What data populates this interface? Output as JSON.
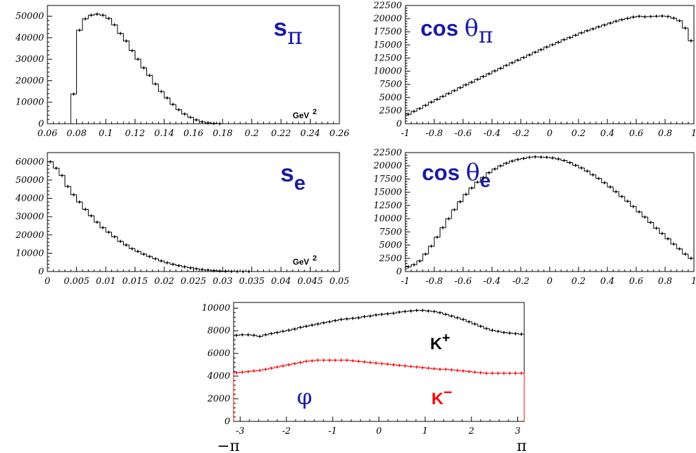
{
  "chart_data": [
    {
      "id": "s_pi",
      "type": "histogram",
      "title": "s_π",
      "title_main": "s",
      "title_sub": "π",
      "unit": "GeV",
      "unit_sup": "2",
      "xlim": [
        0.06,
        0.26
      ],
      "ylim": [
        0,
        55000
      ],
      "xticks": [
        "0.06",
        "0.08",
        "0.1",
        "0.12",
        "0.14",
        "0.16",
        "0.18",
        "0.2",
        "0.22",
        "0.24",
        "0.26"
      ],
      "yticks": [
        "0",
        "10000",
        "20000",
        "30000",
        "40000",
        "50000"
      ],
      "xtick_values": [
        0.06,
        0.08,
        0.1,
        0.12,
        0.14,
        0.16,
        0.18,
        0.2,
        0.22,
        0.24,
        0.26
      ],
      "ytick_values": [
        0,
        10000,
        20000,
        30000,
        40000,
        50000
      ],
      "bin_start": 0.076,
      "bin_width": 0.004,
      "values": [
        13800,
        43500,
        48800,
        50500,
        51000,
        50500,
        49000,
        46000,
        42000,
        38500,
        34000,
        30000,
        26000,
        22500,
        18500,
        15000,
        12000,
        9000,
        6500,
        4500,
        3000,
        1800,
        900,
        400,
        150,
        50,
        0
      ]
    },
    {
      "id": "cos_theta_pi",
      "type": "histogram",
      "title": "cos θ_π",
      "title_main": "cos ",
      "title_greek": "θ",
      "title_sub": "π",
      "xlim": [
        -1,
        1
      ],
      "ylim": [
        0,
        22500
      ],
      "xticks": [
        "-1",
        "-0.8",
        "-0.6",
        "-0.4",
        "-0.2",
        "0",
        "0.2",
        "0.4",
        "0.6",
        "0.8",
        "1"
      ],
      "yticks": [
        "0",
        "2500",
        "5000",
        "7500",
        "10000",
        "12500",
        "15000",
        "17500",
        "20000",
        "22500"
      ],
      "xtick_values": [
        -1,
        -0.8,
        -0.6,
        -0.4,
        -0.2,
        0,
        0.2,
        0.4,
        0.6,
        0.8,
        1
      ],
      "ytick_values": [
        0,
        2500,
        5000,
        7500,
        10000,
        12500,
        15000,
        17500,
        20000,
        22500
      ],
      "bin_start": -1,
      "bin_width": 0.04,
      "values": [
        1800,
        2350,
        2900,
        3500,
        4100,
        4650,
        5200,
        5750,
        6300,
        6850,
        7400,
        7900,
        8450,
        9000,
        9500,
        10050,
        10550,
        11100,
        11600,
        12100,
        12600,
        13100,
        13600,
        14100,
        14600,
        15050,
        15500,
        16000,
        16400,
        16850,
        17300,
        17700,
        18050,
        18450,
        18800,
        19150,
        19500,
        19800,
        20050,
        20300,
        20450,
        20350,
        20400,
        20450,
        20500,
        20400,
        20100,
        19600,
        18200,
        15800
      ]
    },
    {
      "id": "s_e",
      "type": "histogram",
      "title": "s_e",
      "title_main": "s",
      "title_sub": "e",
      "unit": "GeV",
      "unit_sup": "2",
      "xlim": [
        0,
        0.05
      ],
      "ylim": [
        0,
        65000
      ],
      "xticks": [
        "0",
        "0.005",
        "0.01",
        "0.015",
        "0.02",
        "0.025",
        "0.03",
        "0.035",
        "0.04",
        "0.045",
        "0.05"
      ],
      "yticks": [
        "0",
        "10000",
        "20000",
        "30000",
        "40000",
        "50000",
        "60000"
      ],
      "xtick_values": [
        0,
        0.005,
        0.01,
        0.015,
        0.02,
        0.025,
        0.03,
        0.035,
        0.04,
        0.045,
        0.05
      ],
      "ytick_values": [
        0,
        10000,
        20000,
        30000,
        40000,
        50000,
        60000
      ],
      "bin_start": 0,
      "bin_width": 0.001,
      "values": [
        60000,
        56500,
        52500,
        46500,
        42000,
        38000,
        34000,
        30500,
        27000,
        24000,
        21500,
        19000,
        16500,
        14500,
        12500,
        11000,
        9500,
        8200,
        7000,
        5800,
        4800,
        4000,
        3200,
        2600,
        2000,
        1500,
        1100,
        800,
        500,
        300,
        200,
        100,
        50,
        20,
        10,
        0,
        0,
        0,
        0,
        0,
        0,
        0,
        0,
        0,
        0,
        0,
        0,
        0,
        0,
        0
      ]
    },
    {
      "id": "cos_theta_e",
      "type": "histogram",
      "title": "cos θ_e",
      "title_main": "cos ",
      "title_greek": "θ",
      "title_sub": "e",
      "xlim": [
        -1,
        1
      ],
      "ylim": [
        0,
        22500
      ],
      "xticks": [
        "-1",
        "-0.8",
        "-0.6",
        "-0.4",
        "-0.2",
        "0",
        "0.2",
        "0.4",
        "0.6",
        "0.8",
        "1"
      ],
      "yticks": [
        "0",
        "2500",
        "5000",
        "7500",
        "10000",
        "12500",
        "15000",
        "17500",
        "20000",
        "22500"
      ],
      "xtick_values": [
        -1,
        -0.8,
        -0.6,
        -0.4,
        -0.2,
        0,
        0.2,
        0.4,
        0.6,
        0.8,
        1
      ],
      "ytick_values": [
        0,
        2500,
        5000,
        7500,
        10000,
        12500,
        15000,
        17500,
        20000,
        22500
      ],
      "bin_start": -1,
      "bin_width": 0.04,
      "values": [
        900,
        1300,
        2000,
        3300,
        4800,
        6500,
        8300,
        10000,
        11700,
        13200,
        14600,
        15800,
        16900,
        17800,
        18700,
        19400,
        20000,
        20500,
        20900,
        21200,
        21400,
        21600,
        21700,
        21650,
        21600,
        21500,
        21300,
        21000,
        20600,
        20100,
        19600,
        19000,
        18300,
        17600,
        16800,
        16000,
        15100,
        14200,
        13300,
        12300,
        11300,
        10300,
        9300,
        8200,
        7200,
        6200,
        5200,
        4300,
        3300,
        2500
      ]
    },
    {
      "id": "phi",
      "type": "histogram",
      "title": "φ",
      "xlim": [
        -3.14159,
        3.14159
      ],
      "ylim": [
        0,
        10500
      ],
      "xticks": [
        "-3",
        "-2",
        "-1",
        "0",
        "1",
        "2",
        "3"
      ],
      "xtick_values": [
        -3,
        -2,
        -1,
        0,
        1,
        2,
        3
      ],
      "yticks": [
        "0",
        "2000",
        "4000",
        "6000",
        "8000",
        "10000"
      ],
      "ytick_values": [
        0,
        2000,
        4000,
        6000,
        8000,
        10000
      ],
      "pi_labels": [
        "−π",
        "π"
      ],
      "bin_start": -3.14159,
      "bin_width": 0.125664,
      "series": [
        {
          "name": "K⁺",
          "name_main": "K",
          "name_sup": "+",
          "color": "#000000",
          "values": [
            7600,
            7650,
            7650,
            7600,
            7500,
            7650,
            7750,
            7850,
            7950,
            8050,
            8150,
            8300,
            8400,
            8500,
            8600,
            8700,
            8800,
            8900,
            9000,
            9050,
            9100,
            9150,
            9250,
            9300,
            9400,
            9450,
            9500,
            9550,
            9650,
            9700,
            9750,
            9800,
            9800,
            9750,
            9700,
            9600,
            9450,
            9300,
            9150,
            9000,
            8800,
            8600,
            8400,
            8200,
            8050,
            7950,
            7850,
            7800,
            7750,
            7700
          ]
        },
        {
          "name": "K⁻",
          "name_main": "K",
          "name_sup": "−",
          "color": "#ff0000",
          "values": [
            4300,
            4350,
            4400,
            4450,
            4500,
            4600,
            4700,
            4800,
            4900,
            5000,
            5100,
            5200,
            5300,
            5350,
            5400,
            5400,
            5400,
            5400,
            5400,
            5400,
            5350,
            5300,
            5250,
            5200,
            5150,
            5100,
            5050,
            5000,
            4950,
            4900,
            4850,
            4800,
            4750,
            4700,
            4650,
            4600,
            4600,
            4550,
            4500,
            4450,
            4400,
            4350,
            4300,
            4250,
            4250,
            4250,
            4250,
            4250,
            4250,
            4250
          ]
        }
      ]
    }
  ]
}
